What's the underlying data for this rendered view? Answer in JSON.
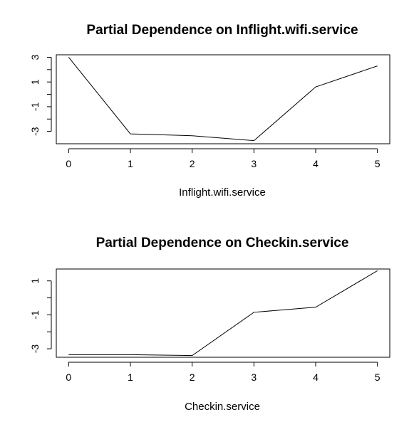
{
  "chart_data": [
    {
      "type": "line",
      "title": "Partial Dependence on Inflight.wifi.service",
      "xlabel": "Inflight.wifi.service",
      "ylabel": "",
      "x": [
        0,
        1,
        2,
        3,
        4,
        5
      ],
      "series": [
        {
          "values": [
            3.0,
            -3.2,
            -3.35,
            -3.75,
            0.6,
            2.3
          ]
        }
      ],
      "x_ticks": [
        "0",
        "1",
        "2",
        "3",
        "4",
        "5"
      ],
      "y_ticks": [
        "-3",
        "-1",
        "1",
        "3"
      ],
      "xlim": [
        -0.2,
        5.2
      ],
      "ylim": [
        -4.0,
        3.2
      ],
      "grid": false,
      "color": "#000000"
    },
    {
      "type": "line",
      "title": "Partial Dependence on Checkin.service",
      "xlabel": "Checkin.service",
      "ylabel": "",
      "x": [
        0,
        1,
        2,
        3,
        4,
        5
      ],
      "series": [
        {
          "values": [
            -3.35,
            -3.35,
            -3.4,
            -0.85,
            -0.55,
            1.6
          ]
        }
      ],
      "x_ticks": [
        "0",
        "1",
        "2",
        "3",
        "4",
        "5"
      ],
      "y_ticks": [
        "-3",
        "-1",
        "1"
      ],
      "xlim": [
        -0.2,
        5.2
      ],
      "ylim": [
        -3.5,
        1.7
      ],
      "grid": false,
      "color": "#000000"
    }
  ]
}
